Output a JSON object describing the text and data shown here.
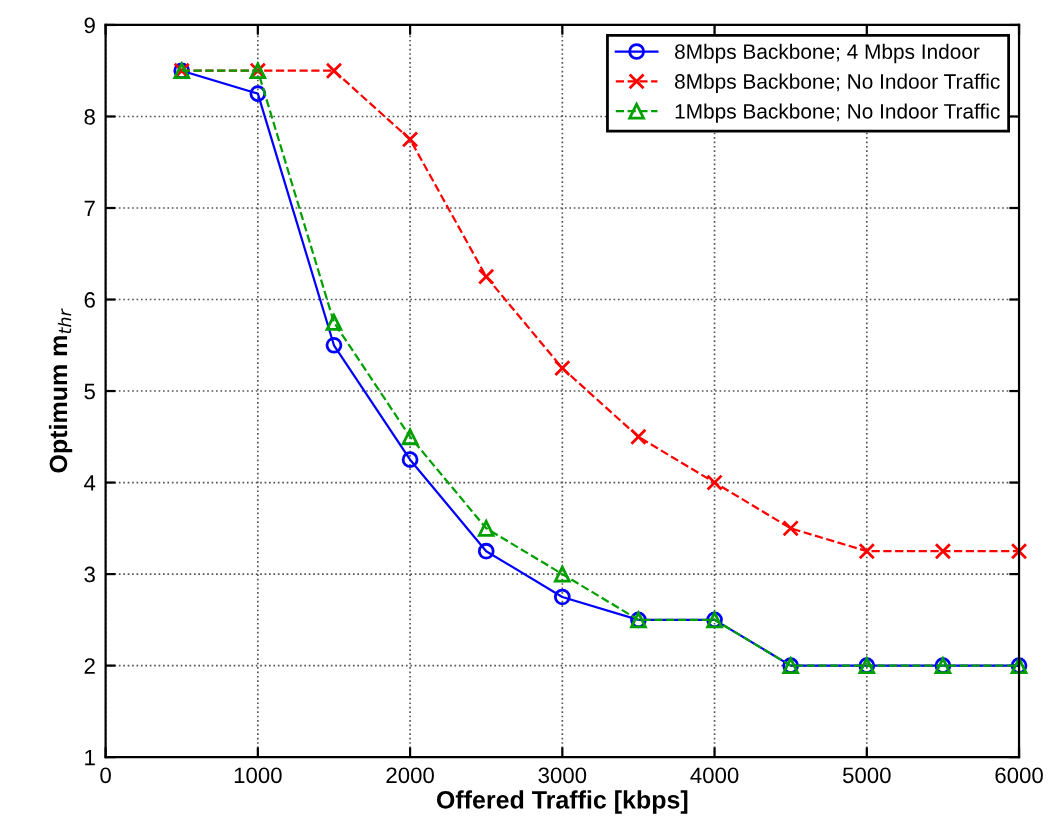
{
  "chart_data": {
    "type": "line",
    "xlabel": "Offered Traffic [kbps]",
    "ylabel": "Optimum m$_{thr}$",
    "x": [
      500,
      1000,
      1500,
      2000,
      2500,
      3000,
      3500,
      4000,
      4500,
      5000,
      5500,
      6000
    ],
    "series": [
      {
        "name": "8Mbps Backbone; 4 Mbps Indoor",
        "color": "#0000ff",
        "marker": "circle",
        "line_style": "solid",
        "values": [
          8.5,
          8.25,
          5.5,
          4.25,
          3.25,
          2.75,
          2.5,
          2.5,
          2.0,
          2.0,
          2.0,
          2.0
        ]
      },
      {
        "name": "8Mbps Backbone; No Indoor Traffic",
        "color": "#ff0000",
        "marker": "cross",
        "line_style": "dashed",
        "values": [
          8.5,
          8.5,
          8.5,
          7.75,
          6.25,
          5.25,
          4.5,
          4.0,
          3.5,
          3.25,
          3.25,
          3.25
        ]
      },
      {
        "name": "1Mbps Backbone; No Indoor Traffic",
        "color": "#00a000",
        "marker": "triangle",
        "line_style": "dashed",
        "values": [
          8.5,
          8.5,
          5.75,
          4.5,
          3.5,
          3.0,
          2.5,
          2.5,
          2.0,
          2.0,
          2.0,
          2.0
        ]
      }
    ],
    "xlim": [
      0,
      6000
    ],
    "xticks": [
      0,
      1000,
      2000,
      3000,
      4000,
      5000,
      6000
    ],
    "ylim": [
      1,
      9
    ],
    "yticks": [
      1,
      2,
      3,
      4,
      5,
      6,
      7,
      8,
      9
    ],
    "grid": true,
    "legend": "top right"
  }
}
